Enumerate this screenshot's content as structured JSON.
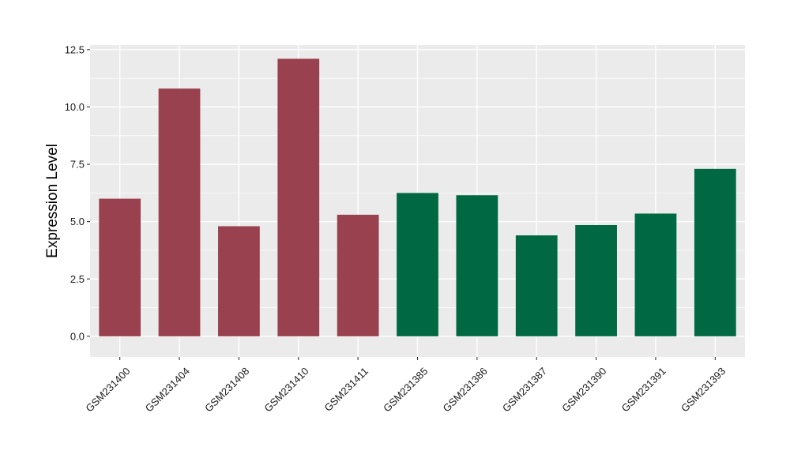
{
  "chart_data": {
    "type": "bar",
    "title": "",
    "xlabel": "",
    "ylabel": "Expression Level",
    "ylim": [
      -0.9,
      12.7
    ],
    "yticks": [
      0.0,
      2.5,
      5.0,
      7.5,
      10.0,
      12.5
    ],
    "ytick_labels": [
      "0.0",
      "2.5",
      "5.0",
      "7.5",
      "10.0",
      "12.5"
    ],
    "grid": true,
    "legend": "none",
    "categories": [
      "GSM231400",
      "GSM231404",
      "GSM231408",
      "GSM231410",
      "GSM231411",
      "GSM231385",
      "GSM231386",
      "GSM231387",
      "GSM231390",
      "GSM231391",
      "GSM231393"
    ],
    "values": [
      6.0,
      10.8,
      4.8,
      12.1,
      5.3,
      6.25,
      6.15,
      4.4,
      4.85,
      5.35,
      7.3
    ],
    "bar_colors": [
      "#99414f",
      "#99414f",
      "#99414f",
      "#99414f",
      "#99414f",
      "#006944",
      "#006944",
      "#006944",
      "#006944",
      "#006944",
      "#006944"
    ],
    "panel_background": "#ebebeb",
    "grid_color": "#ffffff"
  }
}
